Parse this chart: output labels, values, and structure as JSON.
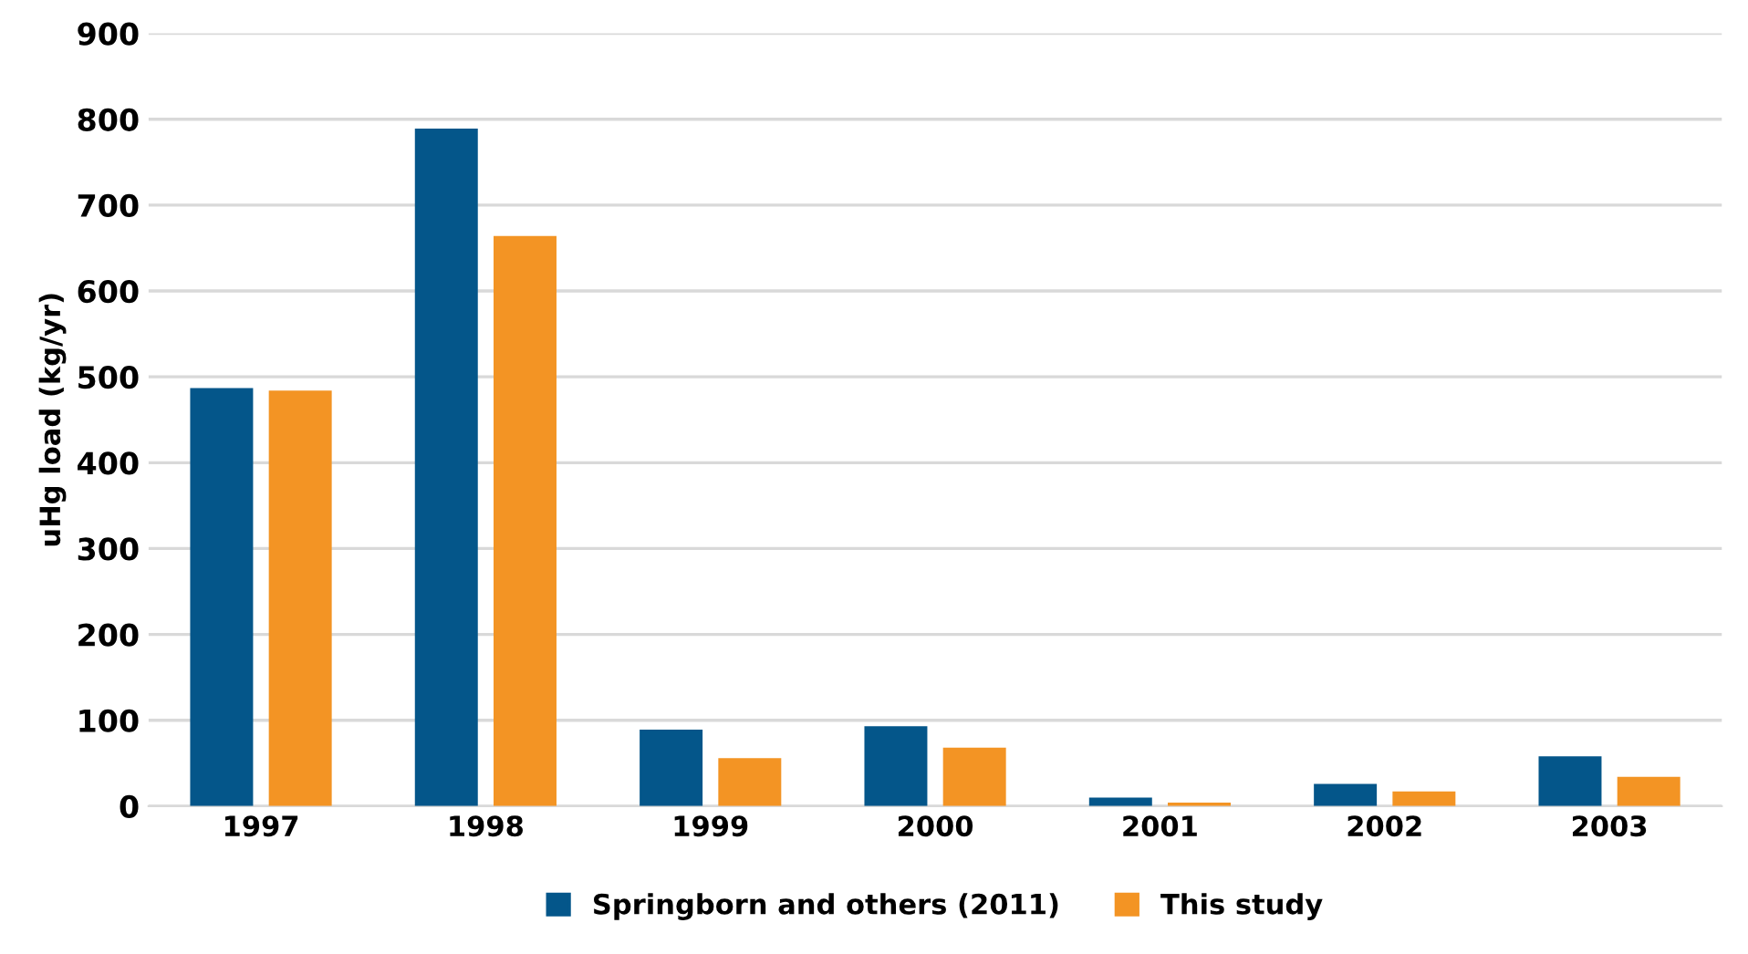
{
  "chart_data": {
    "type": "bar",
    "ylabel": "uHg load (kg/yr)",
    "categories": [
      "1997",
      "1998",
      "1999",
      "2000",
      "2001",
      "2002",
      "2003"
    ],
    "series": [
      {
        "name": "Springborn and others (2011)",
        "color": "#04568a",
        "values": [
          487,
          789,
          89,
          93,
          10,
          26,
          58
        ]
      },
      {
        "name": "This study",
        "color": "#f39424",
        "values": [
          484,
          664,
          56,
          68,
          4,
          17,
          34
        ]
      }
    ],
    "ylim": [
      0,
      900
    ],
    "yticks": [
      0,
      100,
      200,
      300,
      400,
      500,
      600,
      700,
      800,
      900
    ],
    "grid": "y",
    "legend": "bottom"
  }
}
